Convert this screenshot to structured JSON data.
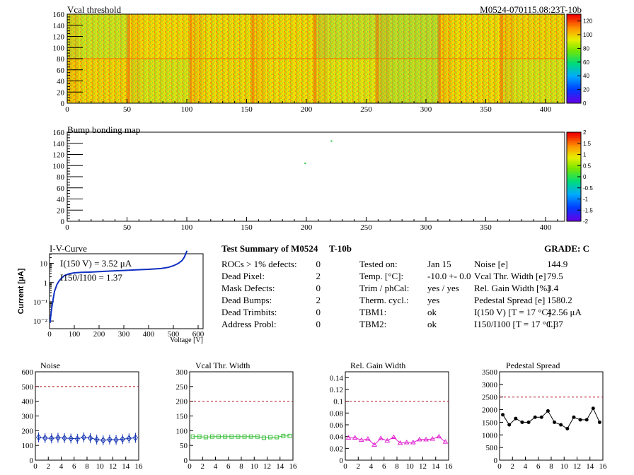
{
  "header": {
    "top_title": "Vcal threshold",
    "module_id": "M0524-070115.08:23T-10b",
    "bump_title": "Bump bonding map"
  },
  "chart_data": [
    {
      "type": "heatmap",
      "title": "Vcal threshold",
      "x_ticks": [
        "0",
        "50",
        "100",
        "150",
        "200",
        "250",
        "300",
        "350",
        "400"
      ],
      "y_ticks": [
        "0",
        "20",
        "40",
        "60",
        "80",
        "100",
        "120",
        "140",
        "160"
      ],
      "xlim": [
        0,
        416
      ],
      "ylim": [
        0,
        160
      ],
      "scale_ticks": [
        "0",
        "20",
        "40",
        "60",
        "80",
        "100",
        "120"
      ],
      "scale_range": [
        0,
        130
      ]
    },
    {
      "type": "heatmap",
      "title": "Bump bonding map",
      "x_ticks": [
        "0",
        "50",
        "100",
        "150",
        "200",
        "250",
        "300",
        "350",
        "400"
      ],
      "y_ticks": [
        "0",
        "20",
        "40",
        "60",
        "80",
        "100",
        "120",
        "140",
        "160"
      ],
      "xlim": [
        0,
        416
      ],
      "ylim": [
        0,
        160
      ],
      "scale_ticks": [
        "-2",
        "-1.5",
        "-1",
        "-0.5",
        "0",
        "0.5",
        "1",
        "1.5",
        "2"
      ],
      "scale_range": [
        -2,
        2
      ],
      "points": [
        {
          "x": 199,
          "y": 104
        },
        {
          "x": 221,
          "y": 144
        }
      ]
    },
    {
      "type": "line",
      "title": "I-V-Curve",
      "xlabel": "Voltage [V]",
      "ylabel": "Current [μA]",
      "x_ticks": [
        "0",
        "100",
        "200",
        "300",
        "400",
        "500",
        "600"
      ],
      "y_ticks": [
        "10",
        "1",
        "10⁻¹",
        "10⁻²"
      ],
      "xlim": [
        0,
        620
      ],
      "ylim_log10": [
        -2.4,
        1.5
      ],
      "annotation_1": "I(150 V) = 3.52 μA",
      "annotation_2": "I150/I100 = 1.37",
      "x": [
        2,
        5,
        10,
        15,
        20,
        30,
        40,
        50,
        60,
        80,
        100,
        130,
        160,
        200,
        250,
        300,
        350,
        400,
        450,
        480,
        500,
        520,
        535,
        545,
        555
      ],
      "y": [
        0.008,
        0.02,
        0.06,
        0.15,
        0.35,
        0.8,
        1.3,
        1.8,
        2.3,
        2.9,
        3.2,
        3.4,
        3.5,
        3.7,
        4.0,
        4.3,
        4.6,
        4.9,
        5.4,
        6.2,
        7.5,
        10,
        14,
        22,
        45
      ]
    },
    {
      "type": "line",
      "title": "Noise",
      "x_ticks": [
        "0",
        "2",
        "4",
        "6",
        "8",
        "10",
        "12",
        "14",
        "16"
      ],
      "y_ticks": [
        "0",
        "100",
        "200",
        "300",
        "400",
        "500",
        "600"
      ],
      "xlim": [
        0,
        16
      ],
      "ylim": [
        0,
        600
      ],
      "threshold": 500,
      "x": [
        0.5,
        1.5,
        2.5,
        3.5,
        4.5,
        5.5,
        6.5,
        7.5,
        8.5,
        9.5,
        10.5,
        11.5,
        12.5,
        13.5,
        14.5,
        15.5
      ],
      "values": [
        155,
        150,
        148,
        152,
        150,
        147,
        145,
        155,
        150,
        140,
        135,
        140,
        138,
        142,
        148,
        152
      ]
    },
    {
      "type": "line",
      "title": "Vcal Thr. Width",
      "x_ticks": [
        "0",
        "2",
        "4",
        "6",
        "8",
        "10",
        "12",
        "14",
        "16"
      ],
      "y_ticks": [
        "0",
        "50",
        "100",
        "150",
        "200",
        "250",
        "300"
      ],
      "xlim": [
        0,
        16
      ],
      "ylim": [
        0,
        300
      ],
      "threshold": 200,
      "x": [
        0.5,
        1.5,
        2.5,
        3.5,
        4.5,
        5.5,
        6.5,
        7.5,
        8.5,
        9.5,
        10.5,
        11.5,
        12.5,
        13.5,
        14.5,
        15.5
      ],
      "values": [
        80,
        80,
        78,
        80,
        80,
        80,
        80,
        80,
        80,
        80,
        80,
        76,
        78,
        78,
        82,
        82
      ]
    },
    {
      "type": "line",
      "title": "Rel. Gain Width",
      "x_ticks": [
        "0",
        "2",
        "4",
        "6",
        "8",
        "10",
        "12",
        "14",
        "16"
      ],
      "y_ticks": [
        "0",
        "0.02",
        "0.04",
        "0.06",
        "0.08",
        "0.1",
        "0.12",
        "0.14"
      ],
      "xlim": [
        0,
        16
      ],
      "ylim": [
        0,
        0.15
      ],
      "threshold": 0.1,
      "x": [
        0.5,
        1.5,
        2.5,
        3.5,
        4.5,
        5.5,
        6.5,
        7.5,
        8.5,
        9.5,
        10.5,
        11.5,
        12.5,
        13.5,
        14.5,
        15.5
      ],
      "values": [
        0.038,
        0.038,
        0.034,
        0.036,
        0.026,
        0.037,
        0.033,
        0.039,
        0.029,
        0.03,
        0.03,
        0.035,
        0.035,
        0.036,
        0.04,
        0.031
      ]
    },
    {
      "type": "line",
      "title": "Pedestal Spread",
      "x_ticks": [
        "0",
        "2",
        "4",
        "6",
        "8",
        "10",
        "12",
        "14",
        "16"
      ],
      "y_ticks": [
        "0",
        "500",
        "1000",
        "1500",
        "2000",
        "2500",
        "3000",
        "3500"
      ],
      "xlim": [
        0,
        16
      ],
      "ylim": [
        0,
        3500
      ],
      "threshold": 2500,
      "x": [
        0.5,
        1.5,
        2.5,
        3.5,
        4.5,
        5.5,
        6.5,
        7.5,
        8.5,
        9.5,
        10.5,
        11.5,
        12.5,
        13.5,
        14.5,
        15.5
      ],
      "values": [
        1800,
        1400,
        1650,
        1500,
        1500,
        1700,
        1700,
        1950,
        1500,
        1400,
        1250,
        1700,
        1600,
        1600,
        2050,
        1500
      ]
    }
  ],
  "summary": {
    "title": "Test Summary of M0524",
    "title_suffix": "T-10b",
    "grade_label": "GRADE:  C",
    "col1": [
      {
        "label": "ROCs > 1% defects:",
        "value": "0"
      },
      {
        "label": "Dead Pixel:",
        "value": "2"
      },
      {
        "label": "Mask Defects:",
        "value": "0"
      },
      {
        "label": "Dead Bumps:",
        "value": "2"
      },
      {
        "label": "Dead Trimbits:",
        "value": "0"
      },
      {
        "label": "Address Probl:",
        "value": "0"
      }
    ],
    "col2": [
      {
        "label": "Tested on:",
        "value": "Jan 15"
      },
      {
        "label": "Temp. [°C]:",
        "value": "-10.0 +- 0.0"
      },
      {
        "label": "Trim / phCal:",
        "value": "yes / yes"
      },
      {
        "label": "Therm. cycl.:",
        "value": "yes"
      },
      {
        "label": "TBM1:",
        "value": "ok"
      },
      {
        "label": "TBM2:",
        "value": "ok"
      }
    ],
    "col3": [
      {
        "label": "Noise [e]",
        "value": "144.9"
      },
      {
        "label": "Vcal Thr. Width [e]",
        "value": "79.5"
      },
      {
        "label": "Rel. Gain Width [%]",
        "value": "3.4"
      },
      {
        "label": "Pedestal Spread [e]",
        "value": "1580.2"
      },
      {
        "label": "I(150 V) [T = 17 °C]",
        "value": "42.56 μA"
      },
      {
        "label": "I150/I100  [T = 17 °C]",
        "value": "1.37"
      }
    ]
  },
  "colors": {
    "threshold_line": "#b01020",
    "noise": "#1030b0",
    "vcal": "#40c040",
    "gain": "#e020d0",
    "pedestal": "#000000",
    "iv": "#1030c0"
  }
}
